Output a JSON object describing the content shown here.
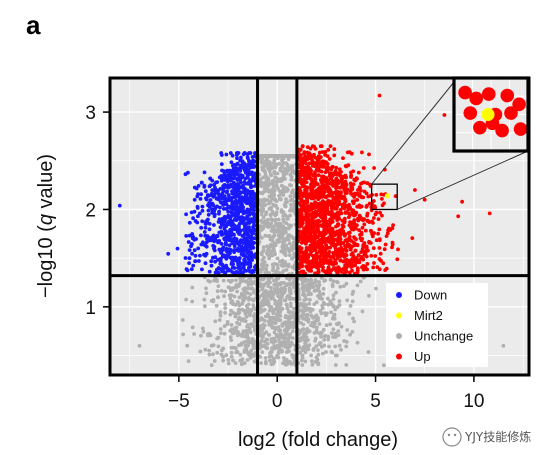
{
  "panel_label": "a",
  "watermark": "YJY技能修炼",
  "colors": {
    "down": "#1a1aff",
    "mirt2": "#ffff00",
    "unchange": "#b0b0b0",
    "up": "#ff0000",
    "panel_bg": "#ebebeb",
    "grid": "#ffffff"
  },
  "chart_data": {
    "type": "scatter",
    "title": "",
    "xlabel": "log2 (fold change)",
    "ylabel_parts": [
      "−log10 (",
      "q",
      " value)"
    ],
    "xlim": [
      -8.5,
      12.8
    ],
    "ylim": [
      0.3,
      3.35
    ],
    "x_ticks": [
      -5,
      0,
      5,
      10
    ],
    "x_tick_labels": [
      "−5",
      "0",
      "5",
      "10"
    ],
    "y_ticks": [
      1,
      2,
      3
    ],
    "y_tick_labels": [
      "1",
      "2",
      "3"
    ],
    "grid": true,
    "threshold_lines": {
      "x": [
        -1,
        1
      ],
      "y": 1.32
    },
    "legend": {
      "placement": "bottom-right",
      "entries": [
        {
          "label": "Down",
          "color": "#1a1aff"
        },
        {
          "label": "Mirt2",
          "color": "#ffff00"
        },
        {
          "label": "Unchange",
          "color": "#b0b0b0"
        },
        {
          "label": "Up",
          "color": "#ff0000"
        }
      ]
    },
    "highlight": {
      "name": "Mirt2",
      "x": 5.6,
      "y": 2.14
    },
    "zoom_window": {
      "x": [
        4.8,
        6.1
      ],
      "y": [
        2.0,
        2.26
      ]
    },
    "outlier_points": [
      {
        "series": "Down",
        "x": -8.0,
        "y": 2.04
      },
      {
        "series": "Up",
        "x": 8.5,
        "y": 2.97
      },
      {
        "series": "Up",
        "x": 9.7,
        "y": 2.8
      },
      {
        "series": "Up",
        "x": 9.4,
        "y": 2.08
      },
      {
        "series": "Up",
        "x": 10.8,
        "y": 1.96
      },
      {
        "series": "Up",
        "x": 9.2,
        "y": 1.93
      },
      {
        "series": "Up",
        "x": 5.2,
        "y": 3.17
      },
      {
        "series": "Up",
        "x": 7.0,
        "y": 2.2
      },
      {
        "series": "Up",
        "x": 7.5,
        "y": 2.1
      },
      {
        "series": "Unchange",
        "x": -7.0,
        "y": 0.6
      },
      {
        "series": "Unchange",
        "x": 11.5,
        "y": 0.6
      }
    ]
  }
}
